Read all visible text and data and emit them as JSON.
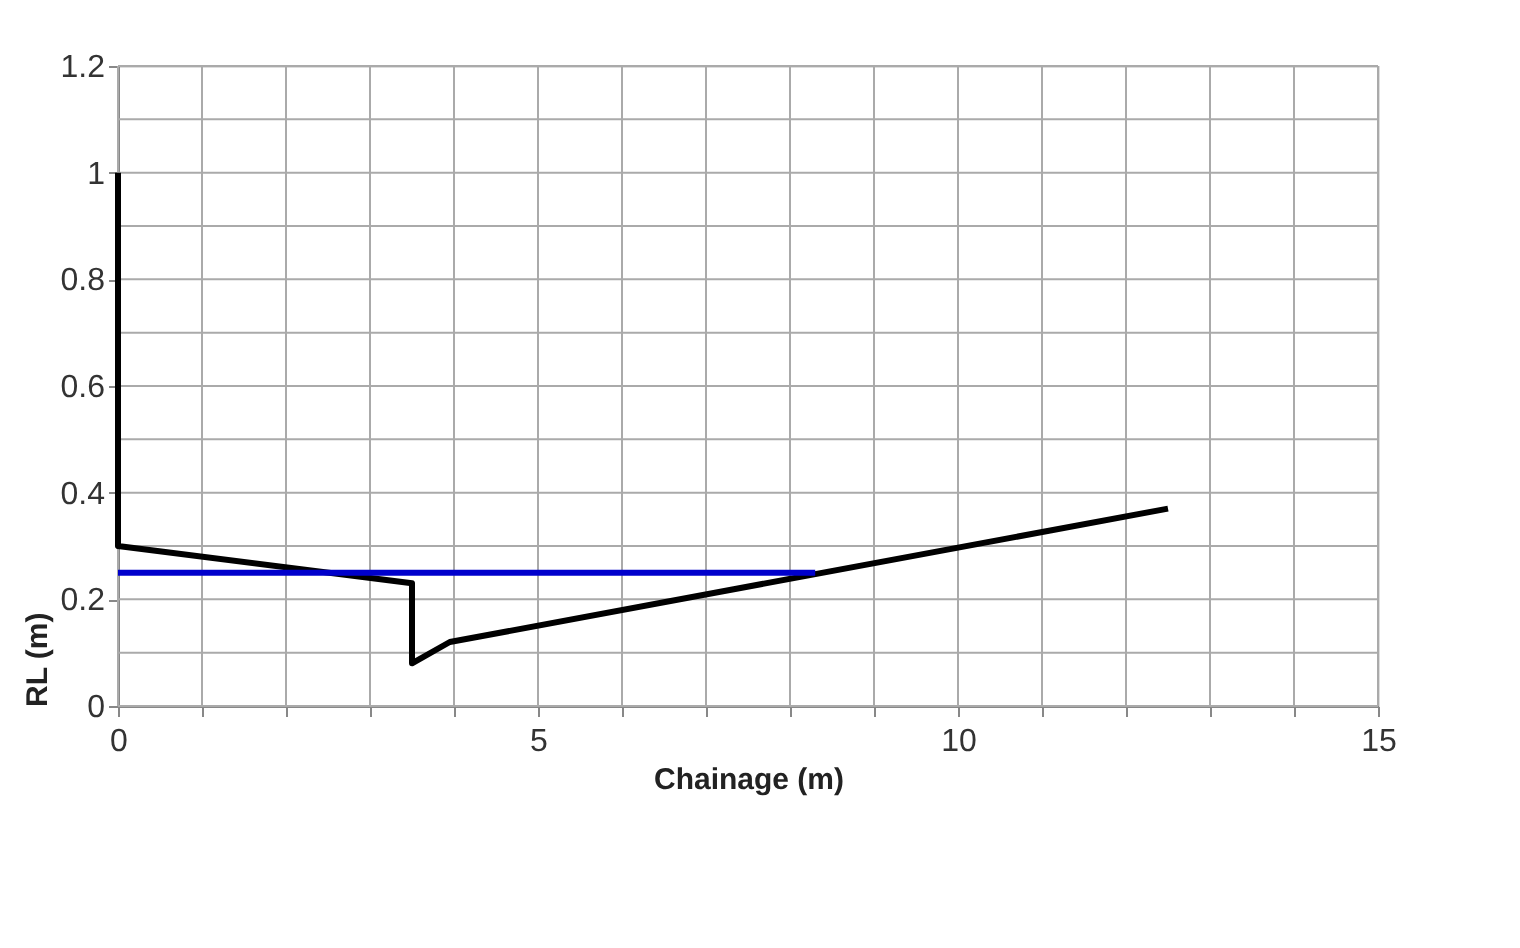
{
  "chart_data": {
    "type": "line",
    "xlabel": "Chainage (m)",
    "ylabel": "RL (m)",
    "xlim": [
      0,
      15
    ],
    "ylim": [
      0,
      1.2
    ],
    "xticks": [
      0,
      {
        "value": 1,
        "label": null
      },
      {
        "value": 2,
        "label": null
      },
      {
        "value": 3,
        "label": null
      },
      {
        "value": 4,
        "label": null
      },
      5,
      {
        "value": 6,
        "label": null
      },
      {
        "value": 7,
        "label": null
      },
      {
        "value": 8,
        "label": null
      },
      {
        "value": 9,
        "label": null
      },
      10,
      {
        "value": 11,
        "label": null
      },
      {
        "value": 12,
        "label": null
      },
      {
        "value": 13,
        "label": null
      },
      {
        "value": 14,
        "label": null
      },
      15
    ],
    "yticks": [
      0,
      {
        "value": 0.1,
        "label": null
      },
      0.2,
      {
        "value": 0.3,
        "label": null
      },
      0.4,
      {
        "value": 0.5,
        "label": null
      },
      0.6,
      {
        "value": 0.7,
        "label": null
      },
      0.8,
      {
        "value": 0.9,
        "label": null
      },
      1,
      {
        "value": 1.1,
        "label": null
      },
      1.2
    ],
    "grid": true,
    "line_style": "solid",
    "marker": "none",
    "series": [
      {
        "color": "#000000",
        "x": [
          0,
          0,
          3.5,
          3.5,
          3.95,
          12.5
        ],
        "values": [
          1.0,
          0.3,
          0.23,
          0.08,
          0.12,
          0.37
        ]
      },
      {
        "color": "#0000cc",
        "x": [
          0,
          8.3
        ],
        "values": [
          0.25,
          0.25
        ]
      }
    ]
  }
}
